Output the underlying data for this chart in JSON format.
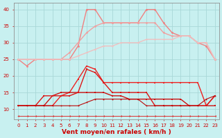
{
  "xlabel": "Vent moyen/en rafales ( km/h )",
  "bg_color": "#c8f0f0",
  "grid_color": "#a8d8d8",
  "x": [
    0,
    1,
    2,
    3,
    4,
    5,
    6,
    7,
    8,
    9,
    10,
    11,
    12,
    13,
    14,
    15,
    16,
    17,
    18,
    19,
    20,
    21,
    22,
    23
  ],
  "lines": [
    {
      "y": [
        25,
        23,
        25,
        25,
        25,
        25,
        25,
        29,
        40,
        40,
        36,
        36,
        36,
        36,
        36,
        40,
        40,
        36,
        33,
        32,
        32,
        30,
        29,
        25
      ],
      "color": "#f08080",
      "lw": 1.0,
      "marker": "o",
      "ms": 2.0,
      "zorder": 3
    },
    {
      "y": [
        25,
        25,
        25,
        25,
        25,
        25,
        27,
        30,
        33,
        35,
        36,
        36,
        36,
        36,
        36,
        36,
        36,
        33,
        32,
        32,
        32,
        30,
        30,
        25
      ],
      "color": "#f0a0a0",
      "lw": 1.0,
      "marker": "o",
      "ms": 2.0,
      "zorder": 3
    },
    {
      "y": [
        25,
        25,
        25,
        25,
        25,
        25,
        25,
        26,
        27,
        28,
        29,
        29,
        30,
        30,
        30,
        31,
        31,
        31,
        31,
        32,
        32,
        30,
        30,
        25
      ],
      "color": "#f0c0c0",
      "lw": 1.0,
      "marker": "o",
      "ms": 1.5,
      "zorder": 3
    },
    {
      "y": [
        11,
        11,
        11,
        11,
        11,
        14,
        15,
        19,
        23,
        22,
        18,
        18,
        18,
        18,
        18,
        18,
        18,
        18,
        18,
        18,
        18,
        18,
        11,
        14
      ],
      "color": "#ee2020",
      "lw": 1.0,
      "marker": "s",
      "ms": 1.8,
      "zorder": 4
    },
    {
      "y": [
        11,
        11,
        11,
        11,
        14,
        15,
        15,
        15,
        15,
        15,
        15,
        14,
        14,
        13,
        13,
        13,
        13,
        13,
        13,
        13,
        11,
        11,
        11,
        11
      ],
      "color": "#cc1010",
      "lw": 1.0,
      "marker": "s",
      "ms": 1.5,
      "zorder": 4
    },
    {
      "y": [
        11,
        11,
        11,
        14,
        14,
        14,
        14,
        15,
        22,
        21,
        18,
        15,
        15,
        15,
        15,
        15,
        11,
        11,
        11,
        11,
        11,
        11,
        11,
        14
      ],
      "color": "#dd1515",
      "lw": 1.0,
      "marker": "s",
      "ms": 1.8,
      "zorder": 4
    },
    {
      "y": [
        11,
        11,
        11,
        11,
        11,
        11,
        11,
        11,
        12,
        13,
        13,
        13,
        13,
        13,
        13,
        11,
        11,
        11,
        11,
        11,
        11,
        11,
        13,
        14
      ],
      "color": "#bb0808",
      "lw": 0.8,
      "marker": "s",
      "ms": 1.2,
      "zorder": 4
    },
    {
      "y": [
        8,
        8,
        8,
        8,
        8,
        8,
        8,
        8,
        8,
        8,
        8,
        8,
        8,
        8,
        8,
        8,
        8,
        8,
        8,
        8,
        8,
        8,
        8,
        8
      ],
      "color": "#dd3030",
      "lw": 0.7,
      "marker": "<",
      "ms": 2.0,
      "zorder": 3
    }
  ],
  "ylim": [
    7,
    42
  ],
  "yticks": [
    10,
    15,
    20,
    25,
    30,
    35,
    40
  ],
  "xticks": [
    0,
    1,
    2,
    3,
    4,
    5,
    6,
    7,
    8,
    9,
    10,
    11,
    12,
    13,
    14,
    15,
    16,
    17,
    18,
    19,
    20,
    21,
    22,
    23
  ],
  "tick_fontsize": 5.0,
  "label_fontsize": 6.5,
  "label_color": "#cc0000"
}
